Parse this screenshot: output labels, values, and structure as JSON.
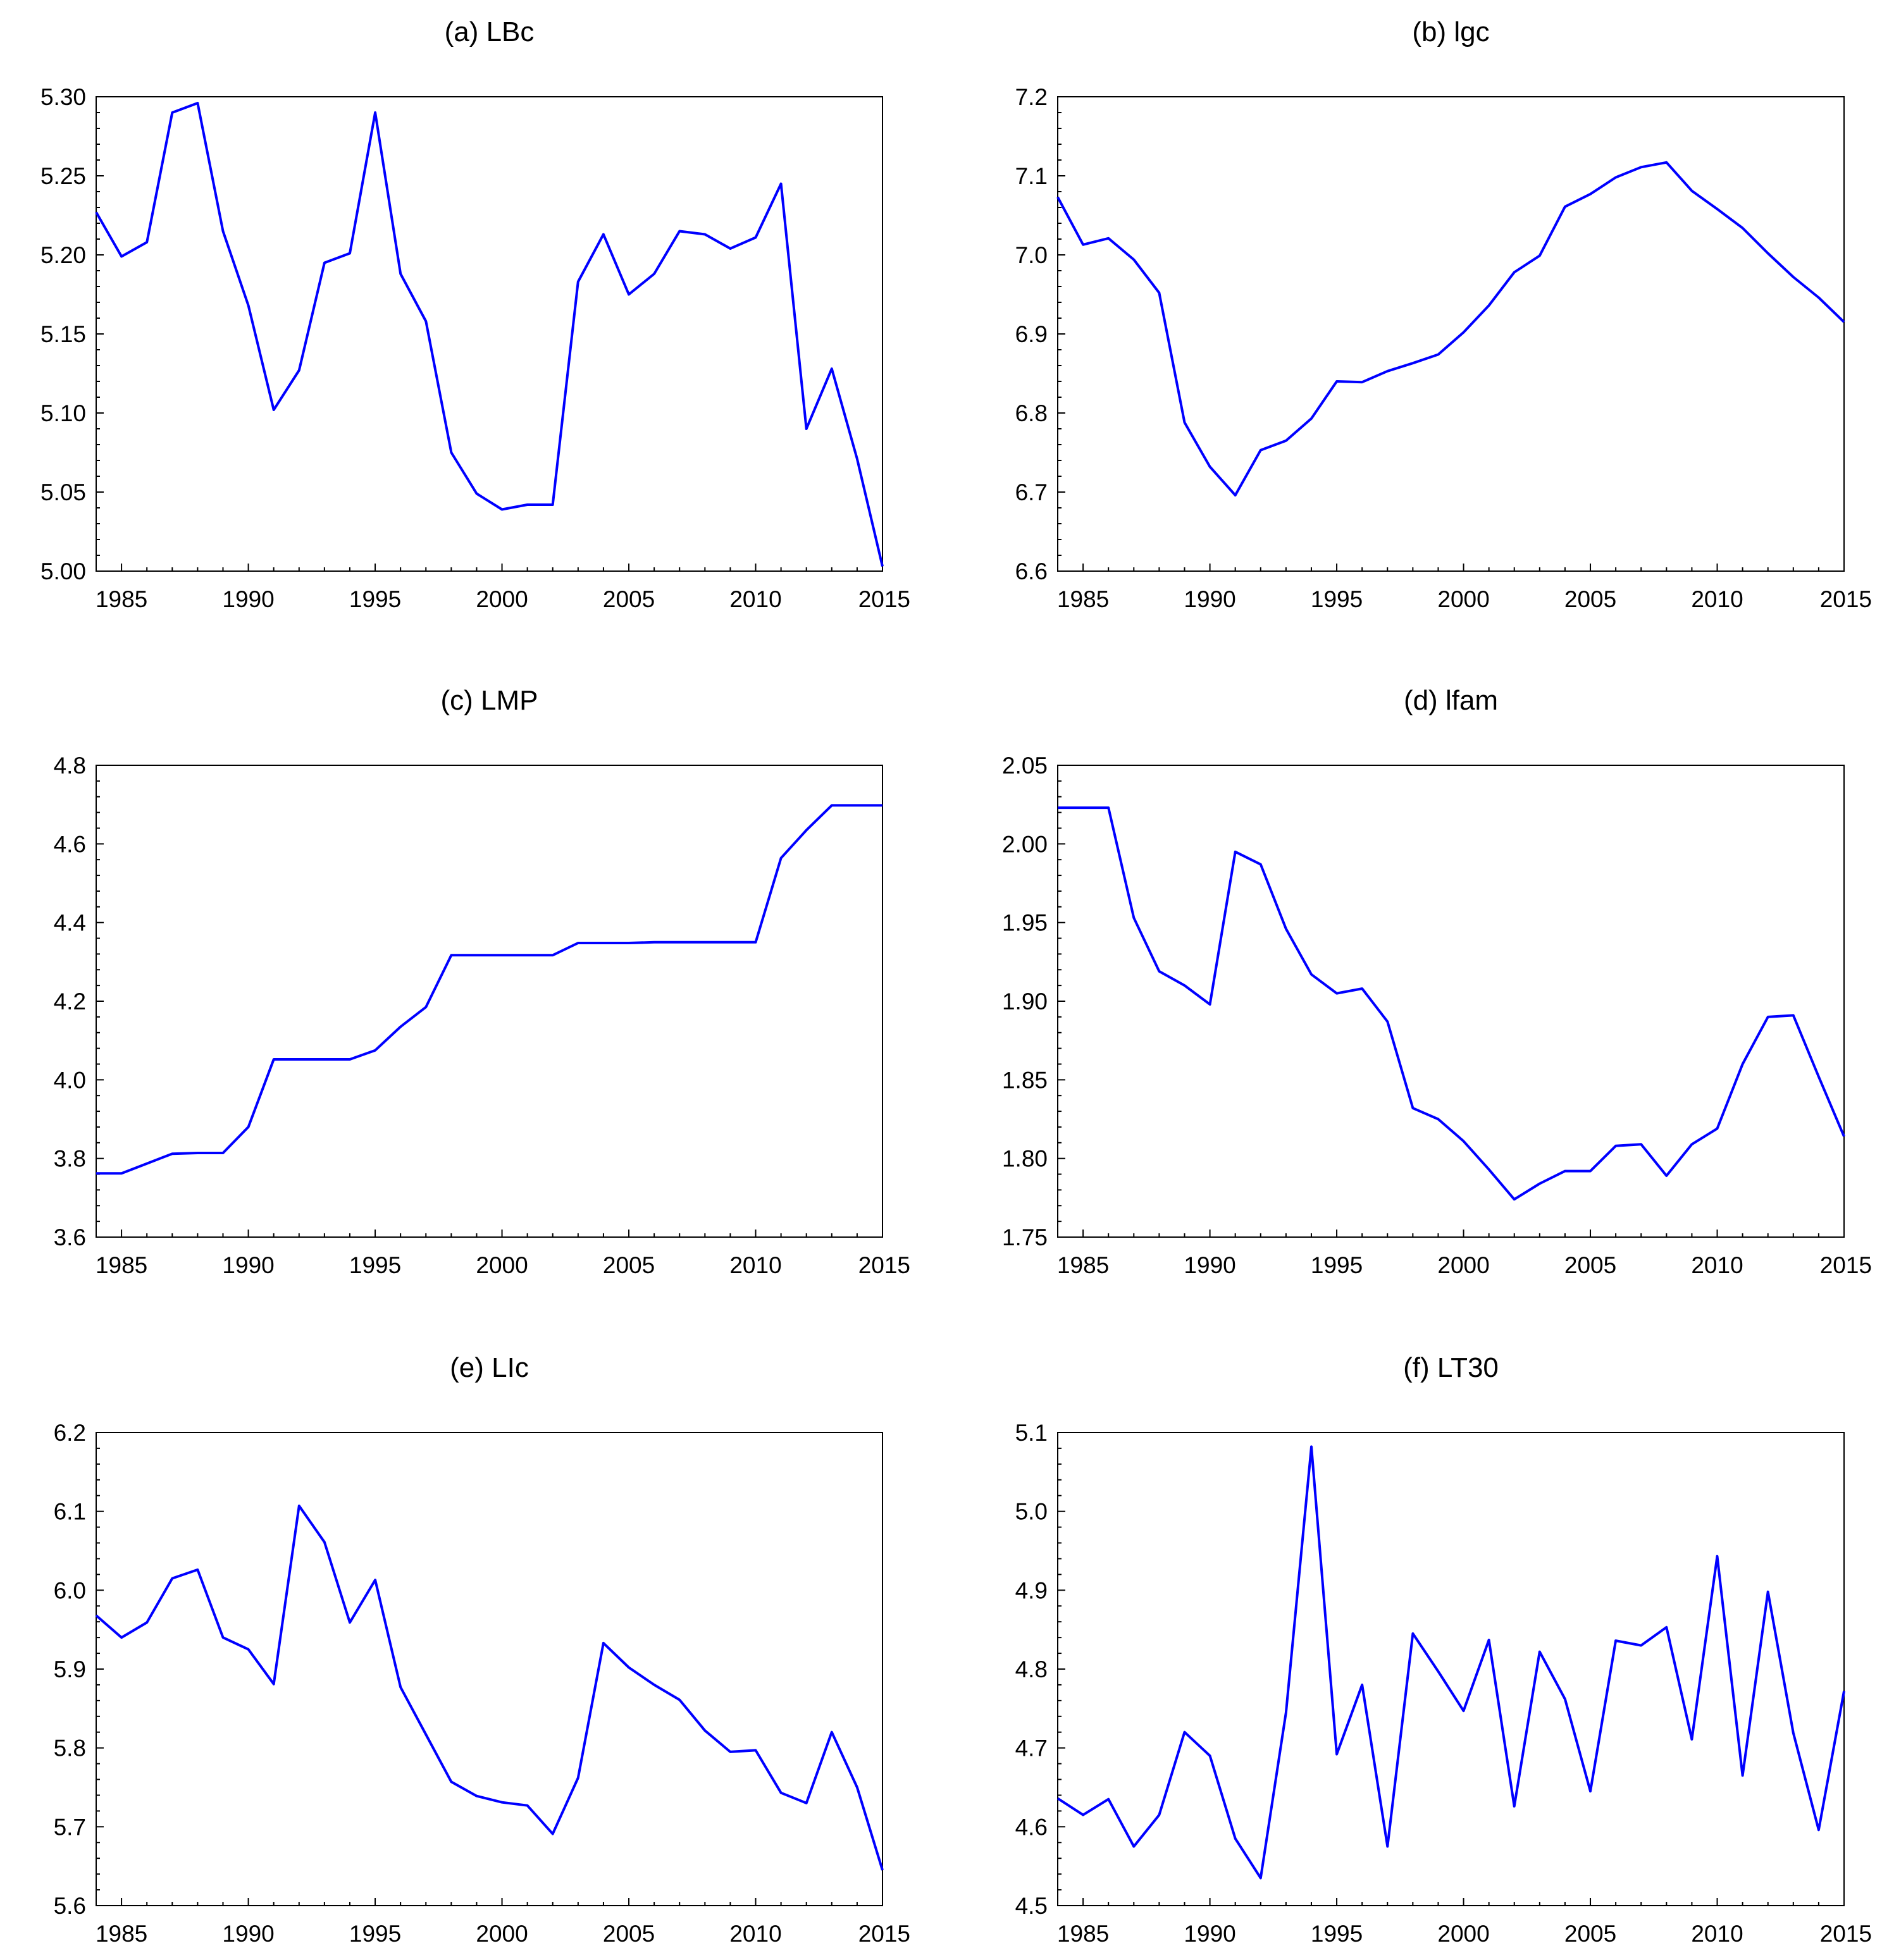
{
  "figure": {
    "accent_color": "#0000ff"
  },
  "chart_data": [
    {
      "type": "line",
      "title": "(a) LBc",
      "x": [
        1984,
        1985,
        1986,
        1987,
        1988,
        1989,
        1990,
        1991,
        1992,
        1993,
        1994,
        1995,
        1996,
        1997,
        1998,
        1999,
        2000,
        2001,
        2002,
        2003,
        2004,
        2005,
        2006,
        2007,
        2008,
        2009,
        2010,
        2011,
        2012,
        2013,
        2014,
        2015
      ],
      "series": [
        {
          "name": "LBc",
          "color": "#0000ff",
          "values": [
            5.227,
            5.199,
            5.208,
            5.29,
            5.296,
            5.215,
            5.168,
            5.102,
            5.127,
            5.195,
            5.201,
            5.29,
            5.188,
            5.158,
            5.075,
            5.049,
            5.039,
            5.042,
            5.042,
            5.183,
            5.213,
            5.175,
            5.188,
            5.215,
            5.213,
            5.204,
            5.211,
            5.245,
            5.09,
            5.128,
            5.071,
            5.003
          ]
        }
      ],
      "ylim": [
        5.0,
        5.3
      ],
      "yticks": [
        "5.00",
        "5.05",
        "5.10",
        "5.15",
        "5.20",
        "5.25",
        "5.30"
      ],
      "xlim": [
        1984,
        2015
      ],
      "xticks": [
        "1985",
        "1990",
        "1995",
        "2000",
        "2005",
        "2010",
        "2015"
      ],
      "xlabel": "",
      "ylabel": ""
    },
    {
      "type": "line",
      "title": "(b) lgc",
      "x": [
        1984,
        1985,
        1986,
        1987,
        1988,
        1989,
        1990,
        1991,
        1992,
        1993,
        1994,
        1995,
        1996,
        1997,
        1998,
        1999,
        2000,
        2001,
        2002,
        2003,
        2004,
        2005,
        2006,
        2007,
        2008,
        2009,
        2010,
        2011,
        2012,
        2013,
        2014,
        2015
      ],
      "series": [
        {
          "name": "lgc",
          "color": "#0000ff",
          "values": [
            7.073,
            7.013,
            7.021,
            6.994,
            6.952,
            6.788,
            6.732,
            6.696,
            6.753,
            6.765,
            6.793,
            6.84,
            6.839,
            6.853,
            6.863,
            6.874,
            6.902,
            6.936,
            6.978,
            6.999,
            7.061,
            7.077,
            7.098,
            7.111,
            7.117,
            7.081,
            7.058,
            7.034,
            7.002,
            6.972,
            6.946,
            6.915
          ]
        }
      ],
      "ylim": [
        6.6,
        7.2
      ],
      "yticks": [
        "6.6",
        "6.7",
        "6.8",
        "6.9",
        "7.0",
        "7.1",
        "7.2"
      ],
      "xlim": [
        1984,
        2015
      ],
      "xticks": [
        "1985",
        "1990",
        "1995",
        "2000",
        "2005",
        "2010",
        "2015"
      ],
      "xlabel": "",
      "ylabel": ""
    },
    {
      "type": "line",
      "title": "(c) LMP",
      "x": [
        1984,
        1985,
        1986,
        1987,
        1988,
        1989,
        1990,
        1991,
        1992,
        1993,
        1994,
        1995,
        1996,
        1997,
        1998,
        1999,
        2000,
        2001,
        2002,
        2003,
        2004,
        2005,
        2006,
        2007,
        2008,
        2009,
        2010,
        2011,
        2012,
        2013,
        2014,
        2015
      ],
      "series": [
        {
          "name": "LMP",
          "color": "#0000ff",
          "values": [
            3.762,
            3.762,
            3.787,
            3.812,
            3.814,
            3.814,
            3.88,
            4.052,
            4.052,
            4.052,
            4.052,
            4.075,
            4.135,
            4.185,
            4.317,
            4.317,
            4.317,
            4.317,
            4.317,
            4.348,
            4.348,
            4.348,
            4.35,
            4.35,
            4.35,
            4.35,
            4.35,
            4.564,
            4.635,
            4.698,
            4.698,
            4.698
          ]
        }
      ],
      "ylim": [
        3.6,
        4.8
      ],
      "yticks": [
        "3.6",
        "3.8",
        "4.0",
        "4.2",
        "4.4",
        "4.6",
        "4.8"
      ],
      "xlim": [
        1984,
        2015
      ],
      "xticks": [
        "1985",
        "1990",
        "1995",
        "2000",
        "2005",
        "2010",
        "2015"
      ],
      "xlabel": "",
      "ylabel": ""
    },
    {
      "type": "line",
      "title": "(d) lfam",
      "x": [
        1984,
        1985,
        1986,
        1987,
        1988,
        1989,
        1990,
        1991,
        1992,
        1993,
        1994,
        1995,
        1996,
        1997,
        1998,
        1999,
        2000,
        2001,
        2002,
        2003,
        2004,
        2005,
        2006,
        2007,
        2008,
        2009,
        2010,
        2011,
        2012,
        2013,
        2014,
        2015
      ],
      "series": [
        {
          "name": "lfam",
          "color": "#0000ff",
          "values": [
            2.023,
            2.023,
            2.023,
            1.953,
            1.919,
            1.91,
            1.898,
            1.995,
            1.987,
            1.946,
            1.917,
            1.905,
            1.908,
            1.887,
            1.832,
            1.825,
            1.811,
            1.793,
            1.774,
            1.784,
            1.792,
            1.792,
            1.808,
            1.809,
            1.789,
            1.809,
            1.819,
            1.86,
            1.89,
            1.891,
            1.852,
            1.814
          ]
        }
      ],
      "ylim": [
        1.75,
        2.05
      ],
      "yticks": [
        "1.75",
        "1.80",
        "1.85",
        "1.90",
        "1.95",
        "2.00",
        "2.05"
      ],
      "xlim": [
        1984,
        2015
      ],
      "xticks": [
        "1985",
        "1990",
        "1995",
        "2000",
        "2005",
        "2010",
        "2015"
      ],
      "xlabel": "",
      "ylabel": ""
    },
    {
      "type": "line",
      "title": "(e) LIc",
      "x": [
        1984,
        1985,
        1986,
        1987,
        1988,
        1989,
        1990,
        1991,
        1992,
        1993,
        1994,
        1995,
        1996,
        1997,
        1998,
        1999,
        2000,
        2001,
        2002,
        2003,
        2004,
        2005,
        2006,
        2007,
        2008,
        2009,
        2010,
        2011,
        2012,
        2013,
        2014,
        2015
      ],
      "series": [
        {
          "name": "LIc",
          "color": "#0000ff",
          "values": [
            5.968,
            5.94,
            5.959,
            6.015,
            6.026,
            5.94,
            5.925,
            5.881,
            6.107,
            6.061,
            5.959,
            6.013,
            5.877,
            5.817,
            5.757,
            5.739,
            5.731,
            5.727,
            5.691,
            5.762,
            5.933,
            5.902,
            5.88,
            5.861,
            5.822,
            5.795,
            5.797,
            5.743,
            5.73,
            5.82,
            5.75,
            5.645
          ]
        }
      ],
      "ylim": [
        5.6,
        6.2
      ],
      "yticks": [
        "5.6",
        "5.7",
        "5.8",
        "5.9",
        "6.0",
        "6.1",
        "6.2"
      ],
      "xlim": [
        1984,
        2015
      ],
      "xticks": [
        "1985",
        "1990",
        "1995",
        "2000",
        "2005",
        "2010",
        "2015"
      ],
      "xlabel": "",
      "ylabel": ""
    },
    {
      "type": "line",
      "title": "(f) LT30",
      "x": [
        1984,
        1985,
        1986,
        1987,
        1988,
        1989,
        1990,
        1991,
        1992,
        1993,
        1994,
        1995,
        1996,
        1997,
        1998,
        1999,
        2000,
        2001,
        2002,
        2003,
        2004,
        2005,
        2006,
        2007,
        2008,
        2009,
        2010,
        2011,
        2012,
        2013,
        2014,
        2015
      ],
      "series": [
        {
          "name": "LT30",
          "color": "#0000ff",
          "values": [
            4.636,
            4.615,
            4.635,
            4.575,
            4.615,
            4.72,
            4.69,
            4.585,
            4.535,
            4.745,
            5.082,
            4.692,
            4.78,
            4.575,
            4.845,
            4.797,
            4.747,
            4.837,
            4.626,
            4.822,
            4.762,
            4.645,
            4.836,
            4.83,
            4.853,
            4.711,
            4.943,
            4.665,
            4.898,
            4.719,
            4.596,
            4.772
          ]
        }
      ],
      "ylim": [
        4.5,
        5.1
      ],
      "yticks": [
        "4.5",
        "4.6",
        "4.7",
        "4.8",
        "4.9",
        "5.0",
        "5.1"
      ],
      "xlim": [
        1984,
        2015
      ],
      "xticks": [
        "1985",
        "1990",
        "1995",
        "2000",
        "2005",
        "2010",
        "2015"
      ],
      "xlabel": "",
      "ylabel": ""
    }
  ]
}
